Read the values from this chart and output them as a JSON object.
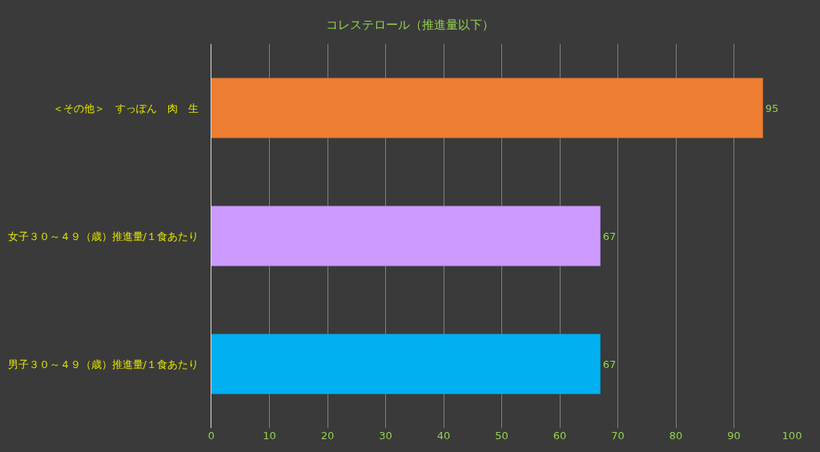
{
  "chart_data": {
    "type": "bar",
    "orientation": "horizontal",
    "title": "コレステロール（推進量以下）",
    "categories": [
      "＜その他＞　すっぽん　肉　生",
      "女子３０～４９（歳）推進量/１食あたり",
      "男子３０～４９（歳）推進量/１食あたり"
    ],
    "values": [
      95,
      67,
      67
    ],
    "colors": [
      "#ed7d31",
      "#cc99ff",
      "#00b0f0"
    ],
    "xlim": [
      0,
      100
    ],
    "xticks": [
      0,
      10,
      20,
      30,
      40,
      50,
      60,
      70,
      80,
      90,
      100
    ],
    "grid": "x",
    "data_labels": true
  }
}
